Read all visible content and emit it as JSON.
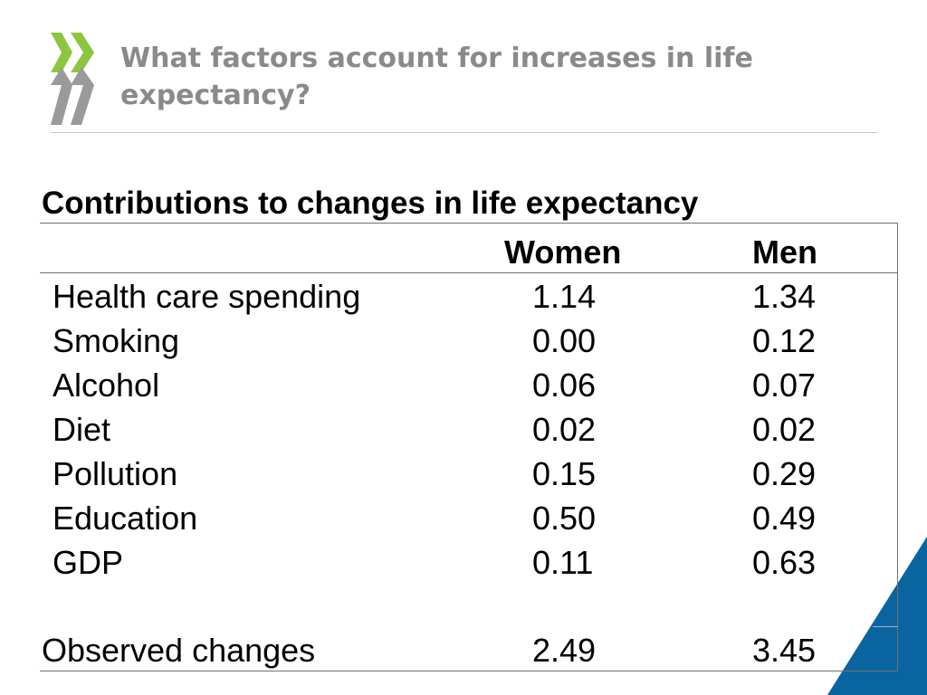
{
  "slide": {
    "title": "What factors account for increases in life expectancy?"
  },
  "logo": {
    "icon": "oecd-chevrons-logo",
    "colors": {
      "green": "#8cc63f",
      "grey": "#9a9a9a"
    }
  },
  "corner_decoration_color": "#0a64a0",
  "table": {
    "heading": "Contributions to changes in life expectancy",
    "columns": [
      "Women",
      "Men"
    ],
    "rows": [
      {
        "factor": "Health care spending",
        "women": "1.14",
        "men": "1.34"
      },
      {
        "factor": "Smoking",
        "women": "0.00",
        "men": "0.12"
      },
      {
        "factor": "Alcohol",
        "women": "0.06",
        "men": "0.07"
      },
      {
        "factor": "Diet",
        "women": "0.02",
        "men": "0.02"
      },
      {
        "factor": "Pollution",
        "women": "0.15",
        "men": "0.29"
      },
      {
        "factor": "Education",
        "women": "0.50",
        "men": "0.49"
      },
      {
        "factor": "GDP",
        "women": "0.11",
        "men": "0.63"
      }
    ],
    "total": {
      "factor": "Observed changes",
      "women": "2.49",
      "men": "3.45"
    }
  }
}
